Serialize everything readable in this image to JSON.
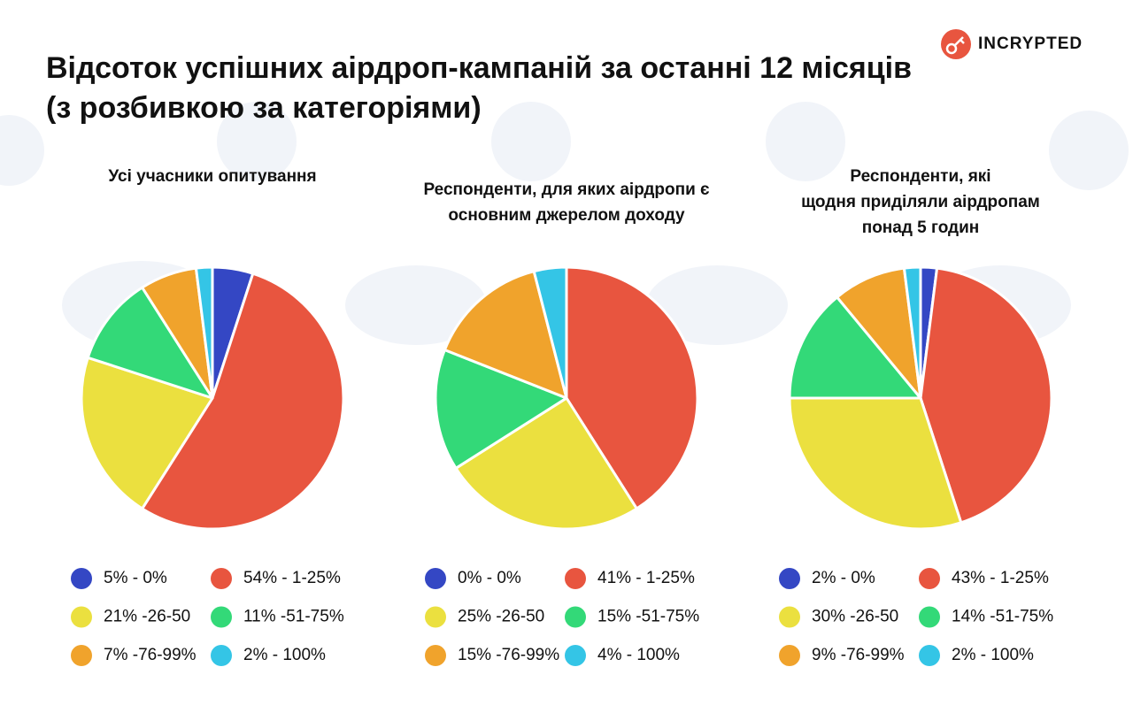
{
  "title": "Відсоток успішних аірдроп-кампаній за останні 12 місяців (з розбивкою за категоріями)",
  "logo": "INCRYPTED",
  "chart_data": [
    {
      "type": "pie",
      "title": [
        "Усі учасники опитування"
      ],
      "categories": [
        "5% - 0%",
        "54% - 1-25%",
        "21% -26-50",
        "11% -51-75%",
        "7% -76-99%",
        "2% - 100%"
      ],
      "values": [
        5,
        54,
        21,
        11,
        7,
        2
      ],
      "colors": [
        "#3447c4",
        "#e8553f",
        "#ebe03f",
        "#33d978",
        "#f0a32c",
        "#34c5e6"
      ]
    },
    {
      "type": "pie",
      "title": [
        "Респонденти, для яких аірдропи є",
        "основним джерелом доходу"
      ],
      "categories": [
        "0% - 0%",
        "41% - 1-25%",
        "25% -26-50",
        "15% -51-75%",
        "15% -76-99%",
        "4% - 100%"
      ],
      "values": [
        0,
        41,
        25,
        15,
        15,
        4
      ],
      "colors": [
        "#3447c4",
        "#e8553f",
        "#ebe03f",
        "#33d978",
        "#f0a32c",
        "#34c5e6"
      ]
    },
    {
      "type": "pie",
      "title": [
        "Респонденти, які",
        "щодня приділяли аірдропам",
        "понад 5 годин"
      ],
      "categories": [
        "2% - 0%",
        "43% - 1-25%",
        "30% -26-50",
        "14% -51-75%",
        "9% -76-99%",
        "2% - 100%"
      ],
      "values": [
        2,
        43,
        30,
        14,
        9,
        2
      ],
      "colors": [
        "#3447c4",
        "#e8553f",
        "#ebe03f",
        "#33d978",
        "#f0a32c",
        "#34c5e6"
      ]
    }
  ]
}
